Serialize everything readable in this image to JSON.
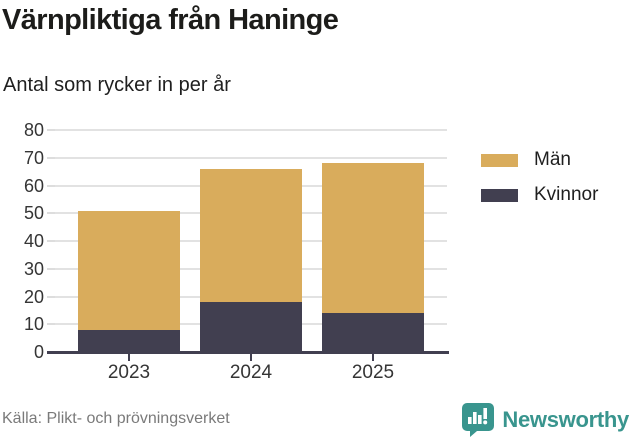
{
  "header": {
    "title": "Värnpliktiga från Haninge",
    "subtitle": "Antal som rycker in per år"
  },
  "chart_data": {
    "type": "bar",
    "stacked": true,
    "title": "Värnpliktiga från Haninge",
    "subtitle": "Antal som rycker in per år",
    "categories": [
      "2023",
      "2024",
      "2025"
    ],
    "series": [
      {
        "name": "Män",
        "color": "#d9ac5c",
        "values": [
          43,
          48,
          54
        ]
      },
      {
        "name": "Kvinnor",
        "color": "#413f50",
        "values": [
          8,
          18,
          14
        ]
      }
    ],
    "stack_bottom_to_top": [
      "Kvinnor",
      "Män"
    ],
    "totals": [
      51,
      66,
      68
    ],
    "xlabel": "",
    "ylabel": "",
    "ylim": [
      0,
      80
    ],
    "yticks": [
      0,
      10,
      20,
      30,
      40,
      50,
      60,
      70,
      80
    ],
    "grid": true,
    "legend_position": "right"
  },
  "legend": {
    "items": [
      {
        "label": "Män",
        "color": "#d9ac5c"
      },
      {
        "label": "Kvinnor",
        "color": "#413f50"
      }
    ]
  },
  "footer": {
    "source": "Källa: Plikt- och prövningsverket",
    "brand": "Newsworthy"
  },
  "colors": {
    "men": "#d9ac5c",
    "women": "#413f50",
    "gridline": "#e2e2e2",
    "axis": "#413f50",
    "brand_teal": "#39958e",
    "text_dark": "#1c1c1a",
    "text_gray": "#7a7a7a"
  }
}
